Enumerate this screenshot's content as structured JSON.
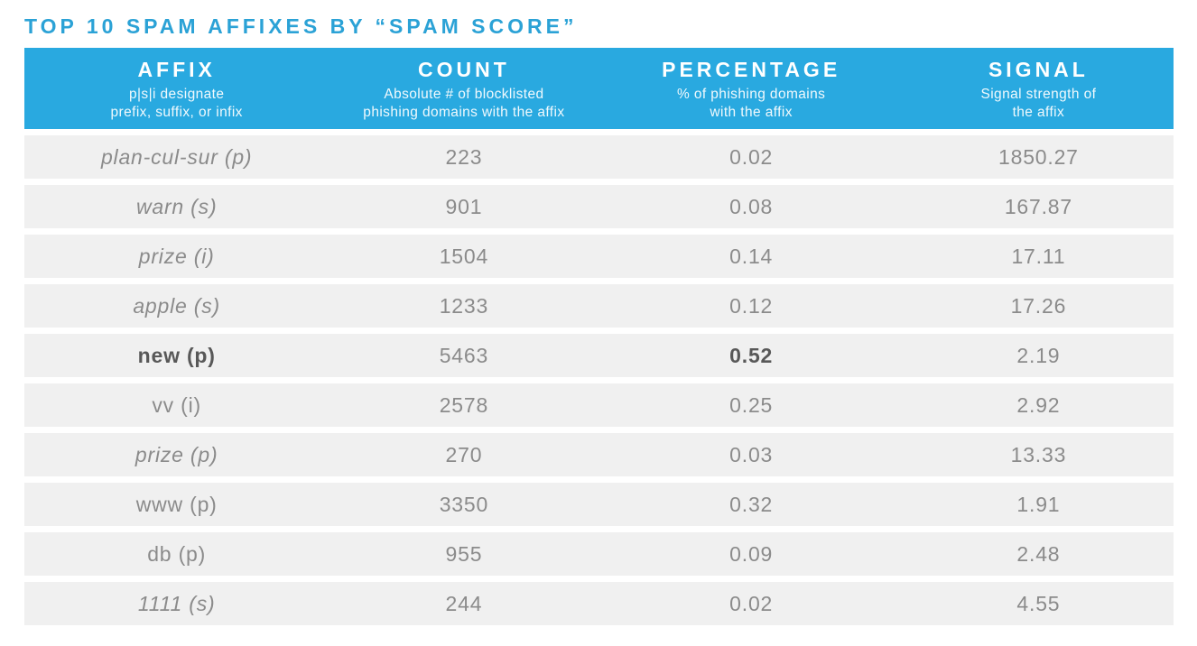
{
  "title": "TOP 10 SPAM AFFIXES BY “SPAM SCORE”",
  "colors": {
    "header_blue": "#29A9E0",
    "title_blue": "#2BA2D6",
    "row_gray": "#F0F0F0",
    "text_gray": "#8B8B8B",
    "bold_text_gray": "#585858"
  },
  "table": {
    "columns": [
      {
        "label": "AFFIX",
        "sub1": "p|s|i designate",
        "sub2": "prefix, suffix, or infix"
      },
      {
        "label": "COUNT",
        "sub1": "Absolute # of blocklisted",
        "sub2": "phishing domains with the affix"
      },
      {
        "label": "PERCENTAGE",
        "sub1": "% of phishing domains",
        "sub2": "with the affix"
      },
      {
        "label": "SIGNAL",
        "sub1": "Signal strength of",
        "sub2": "the affix"
      }
    ],
    "rows": [
      {
        "affix": "plan-cul-sur (p)",
        "count": "223",
        "percentage": "0.02",
        "signal": "1850.27",
        "affix_style": "italic",
        "percentage_style": "normal"
      },
      {
        "affix": "warn (s)",
        "count": "901",
        "percentage": "0.08",
        "signal": "167.87",
        "affix_style": "italic",
        "percentage_style": "normal"
      },
      {
        "affix": "prize (i)",
        "count": "1504",
        "percentage": "0.14",
        "signal": "17.11",
        "affix_style": "italic",
        "percentage_style": "normal"
      },
      {
        "affix": "apple (s)",
        "count": "1233",
        "percentage": "0.12",
        "signal": "17.26",
        "affix_style": "italic",
        "percentage_style": "normal"
      },
      {
        "affix": "new (p)",
        "count": "5463",
        "percentage": "0.52",
        "signal": "2.19",
        "affix_style": "bold",
        "percentage_style": "bold"
      },
      {
        "affix": "vv (i)",
        "count": "2578",
        "percentage": "0.25",
        "signal": "2.92",
        "affix_style": "normal",
        "percentage_style": "normal"
      },
      {
        "affix": "prize (p)",
        "count": "270",
        "percentage": "0.03",
        "signal": "13.33",
        "affix_style": "italic",
        "percentage_style": "normal"
      },
      {
        "affix": "www (p)",
        "count": "3350",
        "percentage": "0.32",
        "signal": "1.91",
        "affix_style": "normal",
        "percentage_style": "normal"
      },
      {
        "affix": "db (p)",
        "count": "955",
        "percentage": "0.09",
        "signal": "2.48",
        "affix_style": "normal",
        "percentage_style": "normal"
      },
      {
        "affix": "1111 (s)",
        "count": "244",
        "percentage": "0.02",
        "signal": "4.55",
        "affix_style": "italic",
        "percentage_style": "normal"
      }
    ]
  },
  "chart_data": {
    "type": "table",
    "title": "TOP 10 SPAM AFFIXES BY “SPAM SCORE”",
    "columns": [
      "AFFIX",
      "COUNT",
      "PERCENTAGE",
      "SIGNAL"
    ],
    "column_descriptions": [
      "p|s|i designate prefix, suffix, or infix",
      "Absolute # of blocklisted phishing domains with the affix",
      "% of phishing domains with the affix",
      "Signal strength of the affix"
    ],
    "rows": [
      [
        "plan-cul-sur (p)",
        223,
        0.02,
        1850.27
      ],
      [
        "warn (s)",
        901,
        0.08,
        167.87
      ],
      [
        "prize (i)",
        1504,
        0.14,
        17.11
      ],
      [
        "apple (s)",
        1233,
        0.12,
        17.26
      ],
      [
        "new (p)",
        5463,
        0.52,
        2.19
      ],
      [
        "vv (i)",
        2578,
        0.25,
        2.92
      ],
      [
        "prize (p)",
        270,
        0.03,
        13.33
      ],
      [
        "www (p)",
        3350,
        0.32,
        1.91
      ],
      [
        "db (p)",
        955,
        0.09,
        2.48
      ],
      [
        "1111 (s)",
        244,
        0.02,
        4.55
      ]
    ]
  }
}
